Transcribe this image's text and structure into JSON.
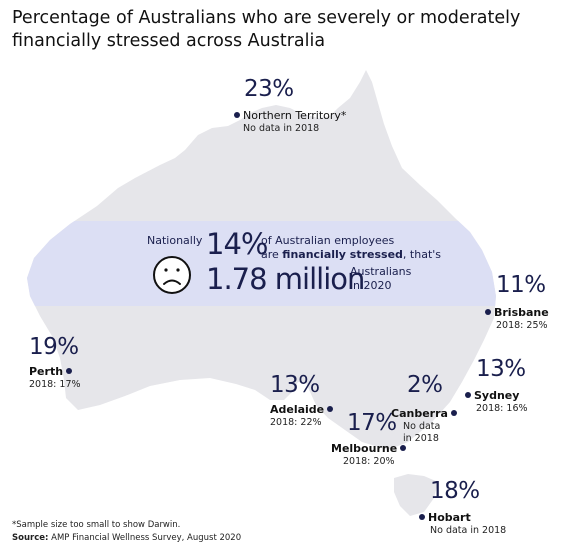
{
  "title": "Percentage of Australians who are severely or moderately financially stressed across Australia",
  "national": {
    "prefix": "Nationally",
    "percent": "14%",
    "line1": "of Australian employees",
    "line2_start": "are ",
    "line2_bold": "financially stressed",
    "line2_end": ", that's",
    "count": "1.78 million",
    "line3": "Australians",
    "line4": "in 2020"
  },
  "regions": [
    {
      "key": "nt",
      "percent": "23%",
      "name": "Northern Territory*",
      "note": "No data in 2018"
    },
    {
      "key": "perth",
      "percent": "19%",
      "name": "Perth",
      "note": "2018: 17%"
    },
    {
      "key": "adelaide",
      "percent": "13%",
      "name": "Adelaide",
      "note": "2018: 22%"
    },
    {
      "key": "melbourne",
      "percent": "17%",
      "name": "Melbourne",
      "note": "2018: 20%"
    },
    {
      "key": "canberra",
      "percent": "2%",
      "name": "Canberra",
      "note1": "No data",
      "note2": "in 2018"
    },
    {
      "key": "sydney",
      "percent": "13%",
      "name": "Sydney",
      "note": "2018: 16%"
    },
    {
      "key": "brisbane",
      "percent": "11%",
      "name": "Brisbane",
      "note": "2018: 25%"
    },
    {
      "key": "hobart",
      "percent": "18%",
      "name": "Hobart",
      "note": "No data in 2018"
    }
  ],
  "footer": {
    "footnote": "*Sample size too small to show Darwin.",
    "source_label": "Source:",
    "source_text": " AMP Financial Wellness Survey, August 2020"
  },
  "colors": {
    "land": "#e6e6ea",
    "band": "#dcdff4",
    "accent": "#1a1f4d"
  },
  "icons": {
    "face": "sad-face-icon",
    "marker": "location-dot-icon"
  }
}
